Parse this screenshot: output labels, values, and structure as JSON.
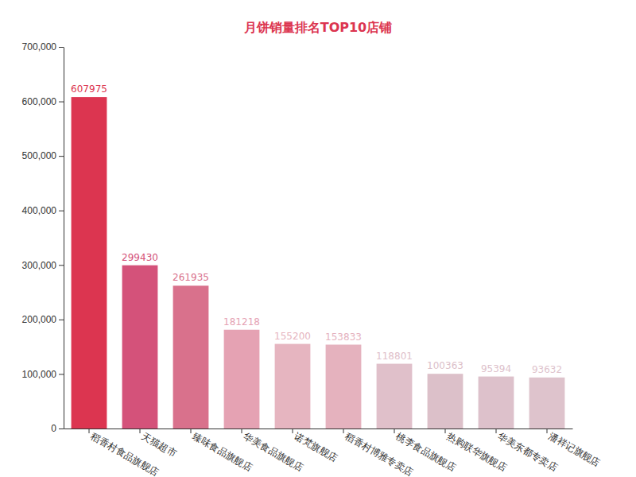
{
  "chart_data": {
    "type": "bar",
    "title": "月饼销量排名TOP10店铺",
    "categories": [
      "稻香村食品旗舰店",
      "天猫超市",
      "臻味食品旗舰店",
      "华美食品旗舰店",
      "诺梵旗舰店",
      "稻香村博雅专卖店",
      "桃李食品旗舰店",
      "热购联华旗舰店",
      "华美东都专卖店",
      "潘祥记旗舰店"
    ],
    "values": [
      607975,
      299430,
      261935,
      181218,
      155200,
      153833,
      118801,
      100363,
      95394,
      93632
    ],
    "colors": [
      "#dc3550",
      "#d4527a",
      "#d9718c",
      "#e5a2b3",
      "#e6b5c0",
      "#e5b2be",
      "#e0c0ca",
      "#dcc0c9",
      "#ddc1cb",
      "#dec3cc"
    ],
    "ylim": [
      0,
      700000
    ],
    "yticks": [
      0,
      {
        "value": 100000,
        "label": "100,000"
      },
      {
        "value": 200000,
        "label": "200,000"
      },
      {
        "value": 300000,
        "label": "300,000"
      },
      {
        "value": 400000,
        "label": "400,000"
      },
      {
        "value": 500000,
        "label": "500,000"
      },
      {
        "value": 600000,
        "label": "600,000"
      },
      {
        "value": 700000,
        "label": "700,000"
      }
    ],
    "grid": false,
    "data_labels": true
  }
}
